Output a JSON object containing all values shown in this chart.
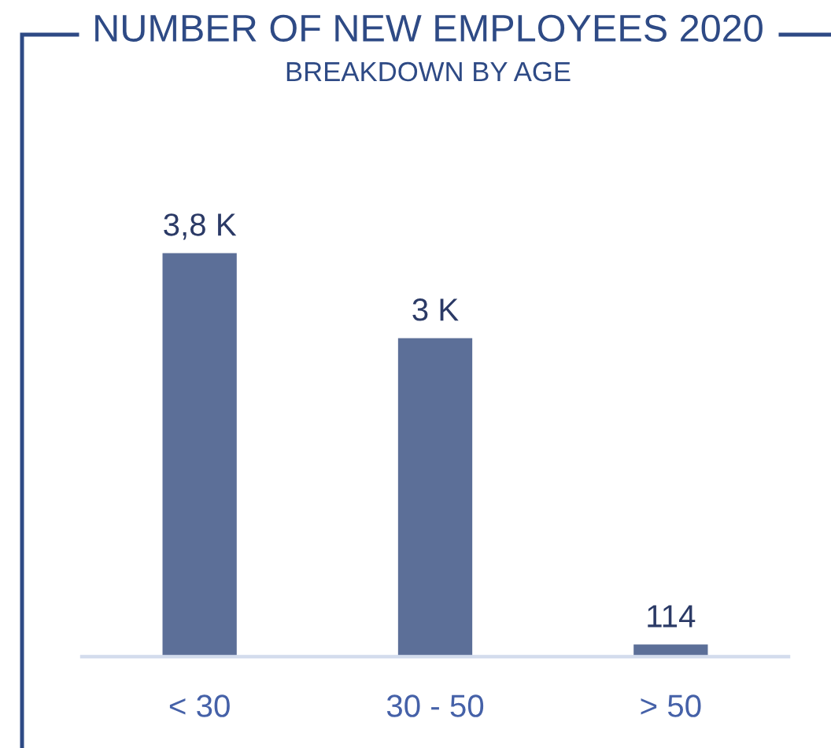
{
  "chart_data": {
    "type": "bar",
    "title": "NUMBER OF NEW EMPLOYEES 2020",
    "subtitle": "BREAKDOWN BY AGE",
    "categories": [
      "< 30",
      "30 - 50",
      "> 50"
    ],
    "values": [
      3800,
      3000,
      114
    ],
    "value_labels": [
      "3,8 K",
      "3 K",
      "114"
    ],
    "color": "#5c6f98"
  }
}
